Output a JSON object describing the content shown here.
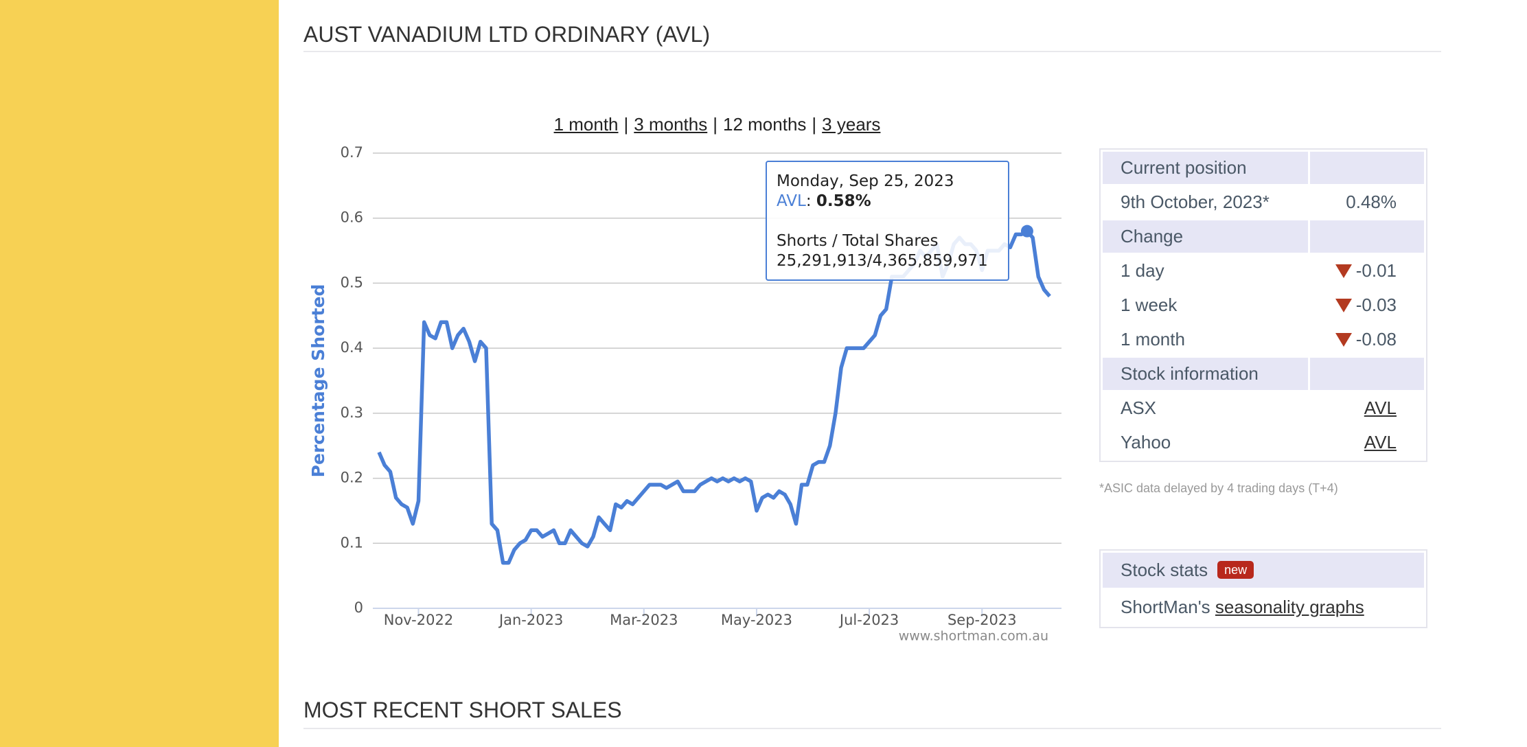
{
  "header": {
    "title": "AUST VANADIUM LTD ORDINARY (AVL)"
  },
  "chart_data": {
    "type": "line",
    "range_links": [
      "1 month",
      "3 months",
      "12 months",
      "3 years"
    ],
    "range_separator": "|",
    "y_label": "Percentage Shorted",
    "watermark": "www.shortman.com.au",
    "categories": [
      null,
      null,
      null,
      null,
      null,
      null,
      null,
      "Nov-2022",
      null,
      null,
      null,
      null,
      null,
      null,
      null,
      null,
      null,
      null,
      null,
      null,
      null,
      null,
      null,
      null,
      null,
      null,
      null,
      "Jan-2023",
      null,
      null,
      null,
      null,
      null,
      null,
      null,
      null,
      null,
      null,
      null,
      null,
      null,
      null,
      null,
      null,
      null,
      null,
      null,
      "Mar-2023",
      null,
      null,
      null,
      null,
      null,
      null,
      null,
      null,
      null,
      null,
      null,
      null,
      null,
      null,
      null,
      null,
      null,
      null,
      null,
      "May-2023",
      null,
      null,
      null,
      null,
      null,
      null,
      null,
      null,
      null,
      null,
      null,
      null,
      null,
      null,
      null,
      null,
      null,
      null,
      null,
      "Jul-2023",
      null,
      null,
      null,
      null,
      null,
      null,
      null,
      null,
      null,
      null,
      null,
      null,
      null,
      null,
      null,
      null,
      null,
      null,
      null,
      "Sep-2023",
      null,
      null,
      null,
      null,
      null,
      null,
      null,
      null,
      null,
      null,
      null,
      null
    ],
    "series": [
      {
        "name": "AVL",
        "color": "#4a7fd6",
        "values": [
          0.24,
          0.22,
          0.21,
          0.17,
          0.16,
          0.155,
          0.13,
          0.165,
          0.44,
          0.42,
          0.415,
          0.44,
          0.44,
          0.4,
          0.42,
          0.43,
          0.41,
          0.38,
          0.41,
          0.4,
          0.13,
          0.12,
          0.07,
          0.07,
          0.09,
          0.1,
          0.105,
          0.12,
          0.12,
          0.11,
          0.115,
          0.12,
          0.1,
          0.1,
          0.12,
          0.11,
          0.1,
          0.095,
          0.11,
          0.14,
          0.13,
          0.12,
          0.16,
          0.155,
          0.165,
          0.16,
          0.17,
          0.18,
          0.19,
          0.19,
          0.19,
          0.185,
          0.19,
          0.195,
          0.18,
          0.18,
          0.18,
          0.19,
          0.195,
          0.2,
          0.195,
          0.2,
          0.195,
          0.2,
          0.195,
          0.2,
          0.195,
          0.15,
          0.17,
          0.175,
          0.17,
          0.18,
          0.175,
          0.16,
          0.13,
          0.19,
          0.19,
          0.22,
          0.225,
          0.225,
          0.25,
          0.3,
          0.37,
          0.4,
          0.4,
          0.4,
          0.4,
          0.41,
          0.42,
          0.45,
          0.46,
          0.51,
          0.51,
          0.51,
          0.52,
          0.53,
          0.55,
          0.54,
          0.55,
          0.56,
          0.51,
          0.53,
          0.56,
          0.57,
          0.56,
          0.56,
          0.55,
          0.52,
          0.55,
          0.55,
          0.55,
          0.56,
          0.555,
          0.575,
          0.575,
          0.58,
          0.57,
          0.51,
          0.49,
          0.48
        ]
      }
    ],
    "ylim": [
      0,
      0.7
    ],
    "yticks": [
      0,
      0.1,
      0.2,
      0.3,
      0.4,
      0.5,
      0.6,
      0.7
    ],
    "grid": true,
    "tooltip": {
      "date": "Monday, Sep 25, 2023",
      "series": "AVL",
      "value": 0.58,
      "value_label": "0.58%",
      "shares_label": "Shorts / Total Shares",
      "shares": "25,291,913/4,365,859,971"
    }
  },
  "side_table": {
    "rows": [
      {
        "header": "Current position"
      },
      {
        "label": "9th October, 2023*",
        "value": "0.48%"
      },
      {
        "header": "Change"
      },
      {
        "label": "1 day",
        "value": "-0.01",
        "down": true
      },
      {
        "label": "1 week",
        "value": "-0.03",
        "down": true
      },
      {
        "label": "1 month",
        "value": "-0.08",
        "down": true
      },
      {
        "header": "Stock information"
      },
      {
        "label": "ASX",
        "link": "AVL"
      },
      {
        "label": "Yahoo",
        "link": "AVL"
      }
    ],
    "footnote": "*ASIC data delayed by 4 trading days (T+4)"
  },
  "stats_box": {
    "title": "Stock stats",
    "badge": "new",
    "prefix": "ShortMan's",
    "link": "seasonality graphs"
  },
  "section_title": "MOST RECENT SHORT SALES"
}
